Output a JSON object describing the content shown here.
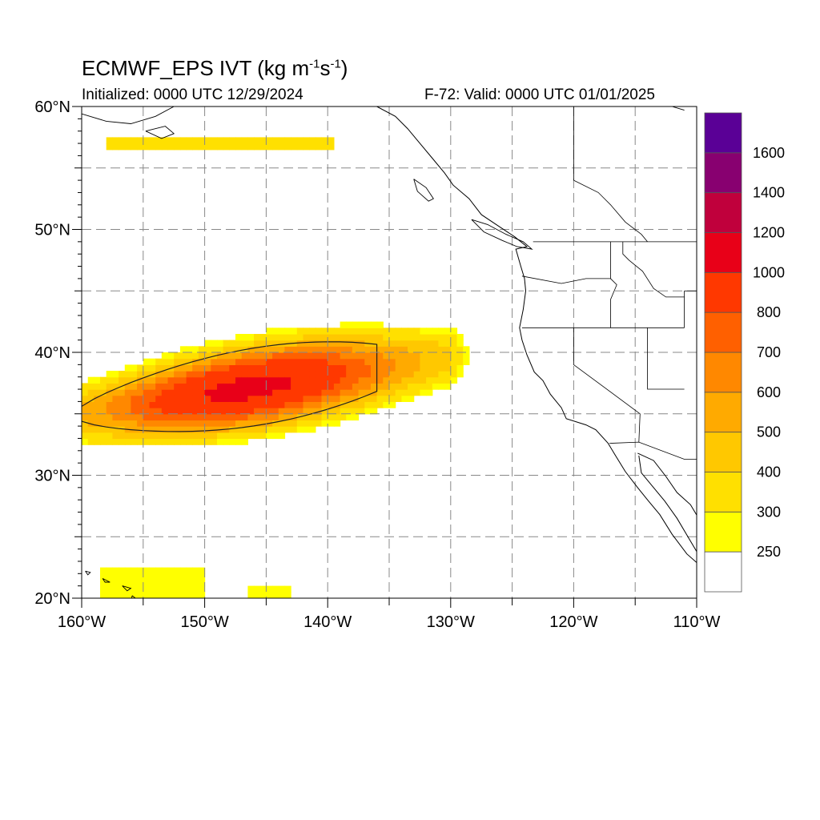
{
  "title": {
    "main": "ECMWF_EPS IVT (kg m",
    "sup1": "-1",
    "s": "s",
    "sup2": "-1",
    "close": ")"
  },
  "subtitle": {
    "left": "Initialized: 0000 UTC 12/29/2024",
    "right": "F-72: Valid: 0000 UTC 01/01/2025"
  },
  "map": {
    "lon_range": [
      -160,
      -110
    ],
    "lat_range": [
      20,
      60
    ],
    "lon_ticks": [
      "160°W",
      "150°W",
      "140°W",
      "130°W",
      "120°W",
      "110°W"
    ],
    "lat_ticks": [
      "20°N",
      "30°N",
      "40°N",
      "50°N",
      "60°N"
    ],
    "gridlines": "dashed grey every 5°",
    "background_color": "#ffffff",
    "feature": "atmospheric river extending from ~160°W 32–38°N north-eastward to ~127°W 42°N, core (>700) near 147°W 36.5°N, black contour enclosing 500+ region"
  },
  "colorbar": {
    "labels": [
      "250",
      "300",
      "400",
      "500",
      "600",
      "700",
      "800",
      "1000",
      "1200",
      "1400",
      "1600"
    ],
    "colors": [
      "#ffffff",
      "#ffff00",
      "#ffe000",
      "#ffc800",
      "#ffaa00",
      "#ff8800",
      "#ff6000",
      "#ff3800",
      "#e80018",
      "#c0003c",
      "#880070",
      "#5a0096"
    ]
  }
}
